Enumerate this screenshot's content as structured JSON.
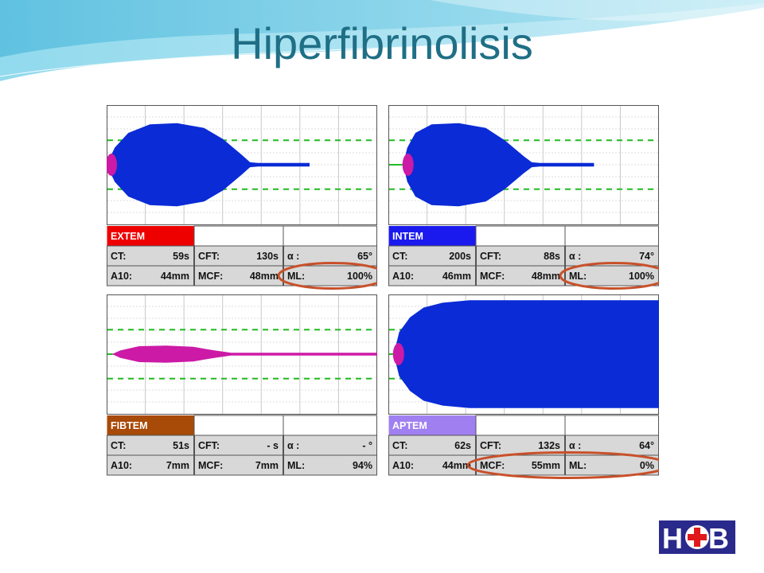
{
  "slide": {
    "title": "Hiperfibrinolisis"
  },
  "colors": {
    "title": "#1f6f86",
    "trace_blue": "#0a2bd6",
    "trace_magenta": "#cc1aa6",
    "reference_line": "#22bb22",
    "highlight_ring": "#c8502a"
  },
  "chart_data": [
    {
      "type": "area",
      "label": "EXTEM",
      "label_color": "#ee0000",
      "trace_color": "#0a2bd6",
      "fields": [
        [
          {
            "k": "CT:",
            "v": "59s"
          },
          {
            "k": "CFT:",
            "v": "130s"
          },
          {
            "k": "α :",
            "v": "65°"
          }
        ],
        [
          {
            "k": "A10:",
            "v": "44mm"
          },
          {
            "k": "MCF:",
            "v": "48mm"
          },
          {
            "k": "ML:",
            "v": "100%"
          }
        ]
      ],
      "highlight": "ML:",
      "profile": [
        [
          0,
          0
        ],
        [
          0.03,
          14
        ],
        [
          0.08,
          26
        ],
        [
          0.16,
          33
        ],
        [
          0.26,
          34
        ],
        [
          0.36,
          30
        ],
        [
          0.43,
          21
        ],
        [
          0.5,
          8
        ],
        [
          0.53,
          2
        ],
        [
          0.56,
          1.5
        ],
        [
          0.75,
          1.5
        ]
      ]
    },
    {
      "type": "area",
      "label": "INTEM",
      "label_color": "#1a1aee",
      "trace_color": "#0a2bd6",
      "fields": [
        [
          {
            "k": "CT:",
            "v": "200s"
          },
          {
            "k": "CFT:",
            "v": "88s"
          },
          {
            "k": "α :",
            "v": "74°"
          }
        ],
        [
          {
            "k": "A10:",
            "v": "46mm"
          },
          {
            "k": "MCF:",
            "v": "48mm"
          },
          {
            "k": "ML:",
            "v": "100%"
          }
        ]
      ],
      "highlight": "ML:",
      "profile": [
        [
          0.055,
          0
        ],
        [
          0.07,
          14
        ],
        [
          0.1,
          26
        ],
        [
          0.16,
          33
        ],
        [
          0.26,
          34
        ],
        [
          0.36,
          30
        ],
        [
          0.43,
          20
        ],
        [
          0.5,
          7
        ],
        [
          0.53,
          2
        ],
        [
          0.56,
          1.5
        ],
        [
          0.76,
          1.5
        ]
      ]
    },
    {
      "type": "area",
      "label": "FIBTEM",
      "label_color": "#a84a08",
      "trace_color": "#cc1aa6",
      "fields": [
        [
          {
            "k": "CT:",
            "v": "51s"
          },
          {
            "k": "CFT:",
            "v": "- s"
          },
          {
            "k": "α :",
            "v": "- °"
          }
        ],
        [
          {
            "k": "A10:",
            "v": "7mm"
          },
          {
            "k": "MCF:",
            "v": "7mm"
          },
          {
            "k": "ML:",
            "v": "94%"
          }
        ]
      ],
      "highlight": "",
      "profile": [
        [
          0.02,
          0
        ],
        [
          0.05,
          3
        ],
        [
          0.12,
          6.5
        ],
        [
          0.22,
          7
        ],
        [
          0.32,
          6
        ],
        [
          0.4,
          3
        ],
        [
          0.46,
          1.2
        ],
        [
          1,
          1.2
        ]
      ]
    },
    {
      "type": "area",
      "label": "APTEM",
      "label_color": "#a080f0",
      "trace_color": "#0a2bd6",
      "fields": [
        [
          {
            "k": "CT:",
            "v": "62s"
          },
          {
            "k": "CFT:",
            "v": "132s"
          },
          {
            "k": "α :",
            "v": "64°"
          }
        ],
        [
          {
            "k": "A10:",
            "v": "44mm"
          },
          {
            "k": "MCF:",
            "v": "55mm"
          },
          {
            "k": "ML:",
            "v": "0%"
          }
        ]
      ],
      "highlight": "MCF:ML:",
      "profile": [
        [
          0.02,
          0
        ],
        [
          0.04,
          18
        ],
        [
          0.08,
          30
        ],
        [
          0.13,
          38
        ],
        [
          0.2,
          42
        ],
        [
          0.3,
          44
        ],
        [
          1,
          44
        ]
      ]
    }
  ]
}
